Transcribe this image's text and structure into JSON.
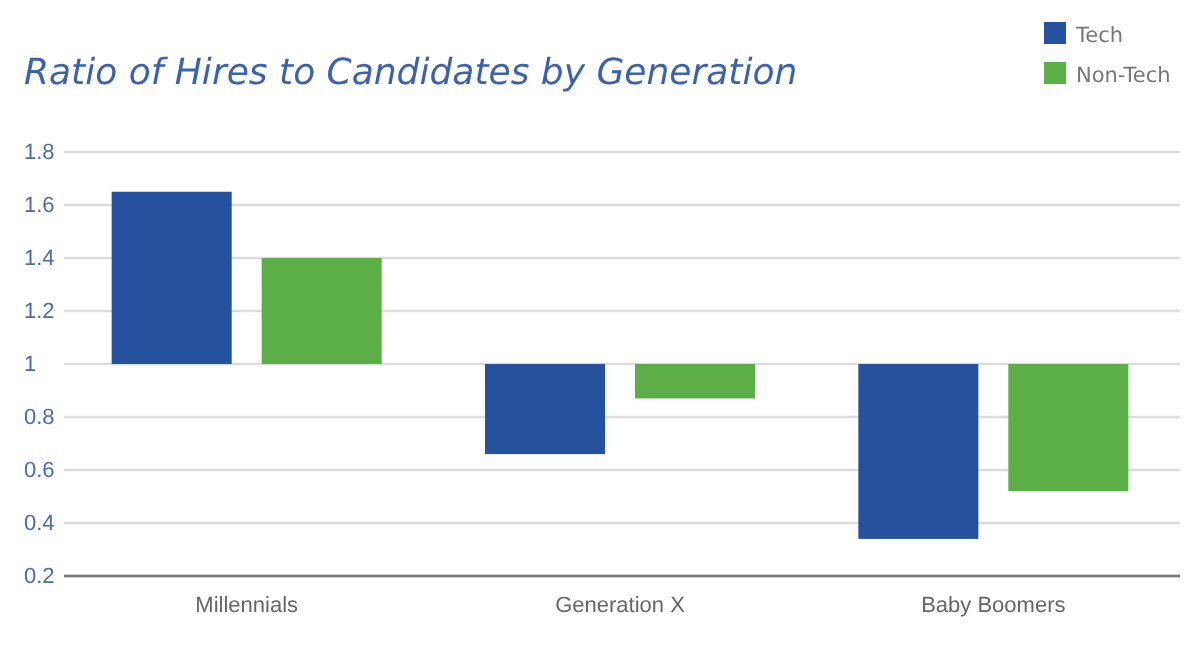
{
  "chart_data": {
    "type": "bar",
    "title": "Ratio of Hires to Candidates by Generation",
    "categories": [
      "Millennials",
      "Generation X",
      "Baby Boomers"
    ],
    "series": [
      {
        "name": "Tech",
        "color": "#26519f",
        "values": [
          0.65,
          -0.34,
          -0.66
        ],
        "base": [
          1,
          1,
          1
        ]
      },
      {
        "name": "Non-Tech",
        "color": "#5caf47",
        "values": [
          0.4,
          -0.13,
          -0.48
        ],
        "base": [
          1,
          1,
          1
        ]
      }
    ],
    "ylim": [
      0.2,
      1.8
    ],
    "yticks": [
      0.2,
      0.4,
      0.6,
      0.8,
      {
        "value": 1,
        "label": "1"
      },
      1.2,
      1.4,
      1.6,
      1.8
    ],
    "grid": "y",
    "legend": "top right"
  }
}
